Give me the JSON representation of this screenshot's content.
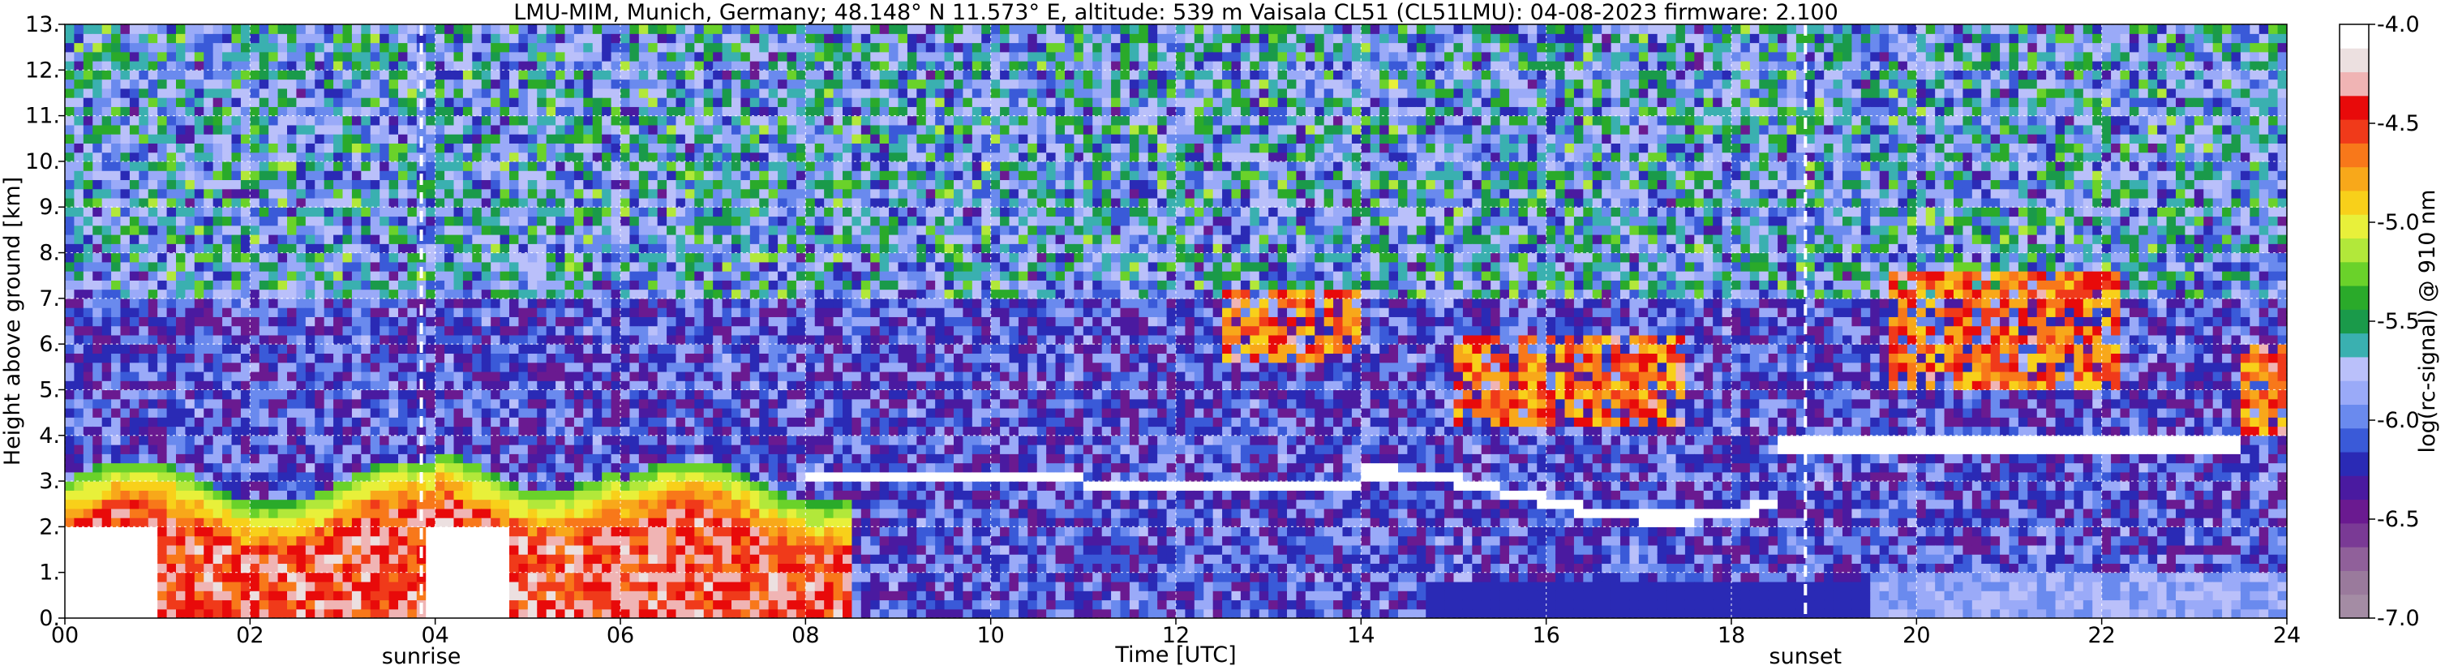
{
  "chart_data": {
    "type": "heatmap",
    "title": "LMU-MIM, Munich, Germany; 48.148° N 11.573° E, altitude: 539 m    Vaisala CL51 (CL51LMU): 04-08-2023    firmware: 2.100",
    "xlabel": "Time [UTC]",
    "ylabel": "Height above ground [km]",
    "xlim": [
      0,
      24
    ],
    "ylim": [
      0,
      13
    ],
    "x_ticks": [
      "00",
      "02",
      "04",
      "06",
      "08",
      "10",
      "12",
      "14",
      "16",
      "18",
      "20",
      "22",
      "24"
    ],
    "x_tick_values": [
      0,
      2,
      4,
      6,
      8,
      10,
      12,
      14,
      16,
      18,
      20,
      22,
      24
    ],
    "y_ticks": [
      "0.",
      "1.",
      "2.",
      "3.",
      "4.",
      "5.",
      "6.",
      "7.",
      "8.",
      "9.",
      "10.",
      "11.",
      "12.",
      "13."
    ],
    "y_tick_values": [
      0,
      1,
      2,
      3,
      4,
      5,
      6,
      7,
      8,
      9,
      10,
      11,
      12,
      13
    ],
    "grid": true,
    "annotations": [
      {
        "label": "sunrise",
        "x": 3.85
      },
      {
        "label": "sunset",
        "x": 18.8
      }
    ],
    "colorbar": {
      "label": "log(rc-signal) @ 910 nm",
      "range": [
        -7.0,
        -4.0
      ],
      "ticks": [
        "-4.0",
        "-4.5",
        "-5.0",
        "-5.5",
        "-6.0",
        "-6.5",
        "-7.0"
      ],
      "tick_values": [
        -4.0,
        -4.5,
        -5.0,
        -5.5,
        -6.0,
        -6.5,
        -7.0
      ],
      "colors": [
        "#a48ca4",
        "#9a7a9c",
        "#90609a",
        "#7a3a95",
        "#6a1a90",
        "#4a1aa0",
        "#2a2ab5",
        "#3a5ad8",
        "#6a8aee",
        "#9aaaf8",
        "#bac0fa",
        "#3ab0b0",
        "#1a9a4a",
        "#2aaa2a",
        "#6ad22a",
        "#b2e83a",
        "#e8f03a",
        "#f8d01a",
        "#f8a81a",
        "#f8781a",
        "#f03a1a",
        "#e80a0a",
        "#f0b4b4",
        "#ece0e0",
        "#ffffff"
      ]
    },
    "features": [
      {
        "kind": "aerosol_layer",
        "x": [
          0,
          8.5
        ],
        "height_top": [
          3.0,
          3.7
        ],
        "signal": "high"
      },
      {
        "kind": "boundary_layer_top",
        "x": [
          8,
          21
        ],
        "height": [
          2.6,
          4.0
        ],
        "signal": "high"
      },
      {
        "kind": "cloud",
        "x": [
          12.5,
          14
        ],
        "height": [
          5.6,
          7.2
        ],
        "signal": "medium"
      },
      {
        "kind": "cloud",
        "x": [
          15,
          17.5
        ],
        "height": [
          4.2,
          6.2
        ],
        "signal": "medium"
      },
      {
        "kind": "cloud",
        "x": [
          19.7,
          22.2
        ],
        "height": [
          5.0,
          7.5
        ],
        "signal": "medium"
      },
      {
        "kind": "cloud",
        "x": [
          23.5,
          24
        ],
        "height": [
          4.0,
          6.0
        ],
        "signal": "medium"
      }
    ]
  }
}
